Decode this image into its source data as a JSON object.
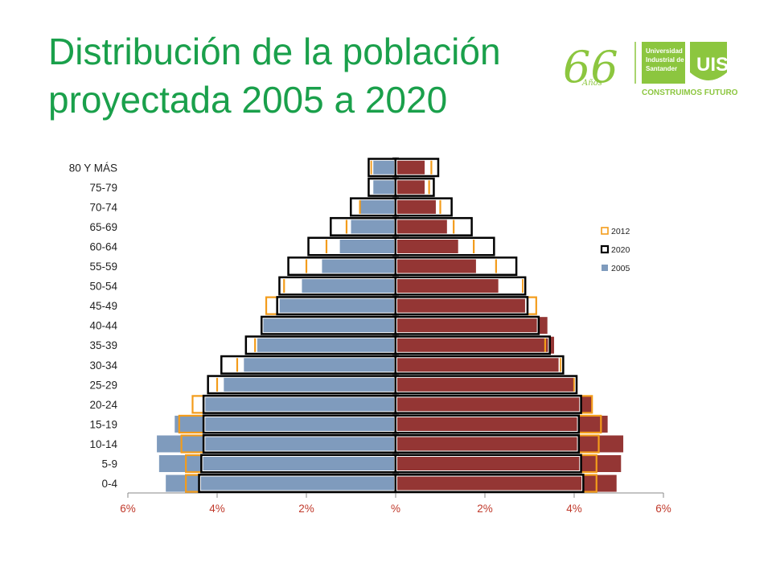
{
  "page": {
    "title_line1": "Distribución de la población",
    "title_line2": "proyectada 2005 a 2020"
  },
  "logo": {
    "number": "66",
    "sub": "Años",
    "line1": "Universidad",
    "line2": "Industrial de",
    "line3": "Santander",
    "tagline": "CONSTRUIMOS FUTURO",
    "green": "#8cc63f"
  },
  "chart_data": {
    "type": "bar",
    "orientation": "horizontal-population-pyramid",
    "title": "",
    "xlabel": "",
    "ylabel": "",
    "xlim": [
      -6,
      6
    ],
    "x_ticks": [
      "6%",
      "4%",
      "2%",
      "%",
      "2%",
      "4%",
      "6%"
    ],
    "categories": [
      "80 Y MÁS",
      "75-79",
      "70-74",
      "65-69",
      "60-64",
      "55-59",
      "50-54",
      "45-49",
      "40-44",
      "35-39",
      "30-34",
      "25-29",
      "20-24",
      "15-19",
      "10-14",
      "5-9",
      "0-4"
    ],
    "legend": [
      "2012",
      "2020",
      "2005"
    ],
    "legend_position": "right",
    "series": [
      {
        "name": "2005",
        "style": "filled",
        "colors": {
          "left": "#7f9bbd",
          "right": "#943634"
        },
        "left": [
          0.5,
          0.5,
          0.8,
          1.0,
          1.25,
          1.65,
          2.1,
          2.6,
          3.0,
          3.1,
          3.4,
          3.85,
          4.3,
          4.95,
          5.35,
          5.3,
          5.15
        ],
        "right": [
          0.65,
          0.65,
          0.9,
          1.15,
          1.4,
          1.8,
          2.3,
          2.9,
          3.4,
          3.55,
          3.65,
          4.0,
          4.4,
          4.75,
          5.1,
          5.05,
          4.95
        ]
      },
      {
        "name": "2012",
        "style": "outline",
        "color": "#f39c1b",
        "left": [
          0.55,
          0.6,
          0.8,
          1.1,
          1.55,
          2.0,
          2.5,
          2.9,
          3.0,
          3.15,
          3.55,
          4.0,
          4.55,
          4.85,
          4.8,
          4.7,
          4.7
        ],
        "right": [
          0.8,
          0.75,
          1.0,
          1.3,
          1.75,
          2.25,
          2.85,
          3.15,
          3.2,
          3.35,
          3.7,
          4.0,
          4.4,
          4.6,
          4.55,
          4.5,
          4.5
        ]
      },
      {
        "name": "2020",
        "style": "outline",
        "color": "#000000",
        "left": [
          0.6,
          0.6,
          1.0,
          1.45,
          1.95,
          2.4,
          2.6,
          2.65,
          3.0,
          3.35,
          3.9,
          4.2,
          4.3,
          4.3,
          4.3,
          4.35,
          4.4
        ],
        "right": [
          0.95,
          0.85,
          1.25,
          1.7,
          2.2,
          2.7,
          2.9,
          2.95,
          3.2,
          3.45,
          3.75,
          4.05,
          4.15,
          4.1,
          4.1,
          4.15,
          4.2
        ]
      }
    ]
  }
}
